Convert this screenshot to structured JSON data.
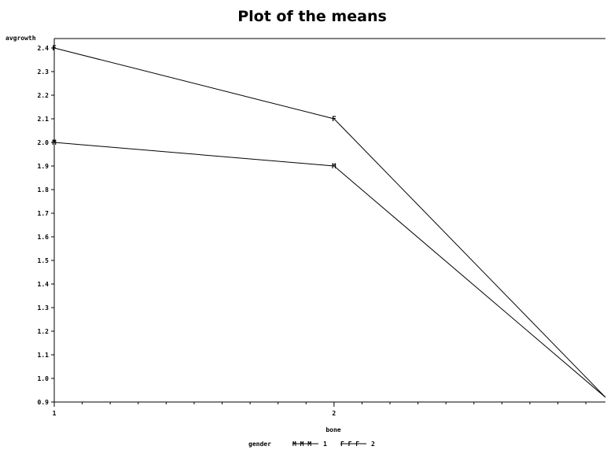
{
  "chart_data": {
    "type": "line",
    "title": "Plot of the means",
    "xlabel": "bone",
    "ylabel": "avgrowth",
    "x_tick_labels": [
      "1",
      "2"
    ],
    "y_tick_labels": [
      "0.9",
      "1.0",
      "1.1",
      "1.2",
      "1.3",
      "1.4",
      "1.5",
      "1.6",
      "1.7",
      "1.8",
      "1.9",
      "2.0",
      "2.1",
      "2.2",
      "2.3",
      "2.4"
    ],
    "xlim": [
      1,
      2.97
    ],
    "ylim": [
      0.9,
      2.44
    ],
    "x_minor_per_major": 10,
    "grid": false,
    "reference_line_y": 2.44,
    "legend": {
      "position": "bottom",
      "title": "gender",
      "entries": [
        {
          "symbols": "M M M",
          "label": "1"
        },
        {
          "symbols": "F F F",
          "label": "2"
        }
      ]
    },
    "series": [
      {
        "symbol": "F",
        "color": "#000000",
        "x": [
          1,
          2,
          3
        ],
        "y": [
          2.4,
          2.1,
          0.92
        ]
      },
      {
        "symbol": "M",
        "color": "#000000",
        "x": [
          1,
          2,
          3
        ],
        "y": [
          2.0,
          1.9,
          0.92
        ]
      }
    ]
  }
}
